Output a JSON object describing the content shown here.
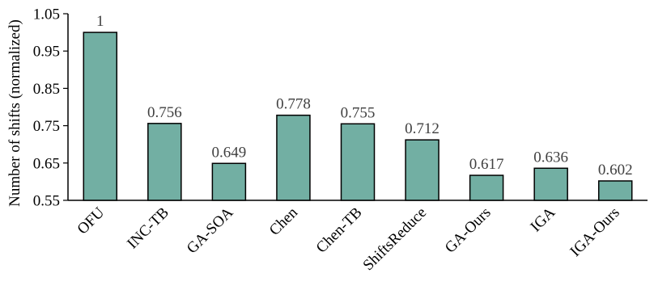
{
  "chart_data": {
    "type": "bar",
    "title": "",
    "xlabel": "",
    "ylabel": "Number of shifts (normalized)",
    "ylim": [
      0.55,
      1.05
    ],
    "yticks": [
      "0.55",
      "0.65",
      "0.75",
      "0.85",
      "0.95",
      "1.05"
    ],
    "grid": false,
    "categories": [
      "OFU",
      "INC-TB",
      "GA-SOA",
      "Chen",
      "Chen-TB",
      "ShiftsReduce",
      "GA-Ours",
      "IGA",
      "IGA-Ours"
    ],
    "values": [
      1,
      0.756,
      0.649,
      0.778,
      0.755,
      0.712,
      0.617,
      0.636,
      0.602
    ],
    "data_labels": [
      "1",
      "0.756",
      "0.649",
      "0.778",
      "0.755",
      "0.712",
      "0.617",
      "0.636",
      "0.602"
    ],
    "colors": {
      "bar": "#72AFA3",
      "bar_stroke": "#000000",
      "axis": "#000000",
      "data_label": "#404040"
    }
  }
}
